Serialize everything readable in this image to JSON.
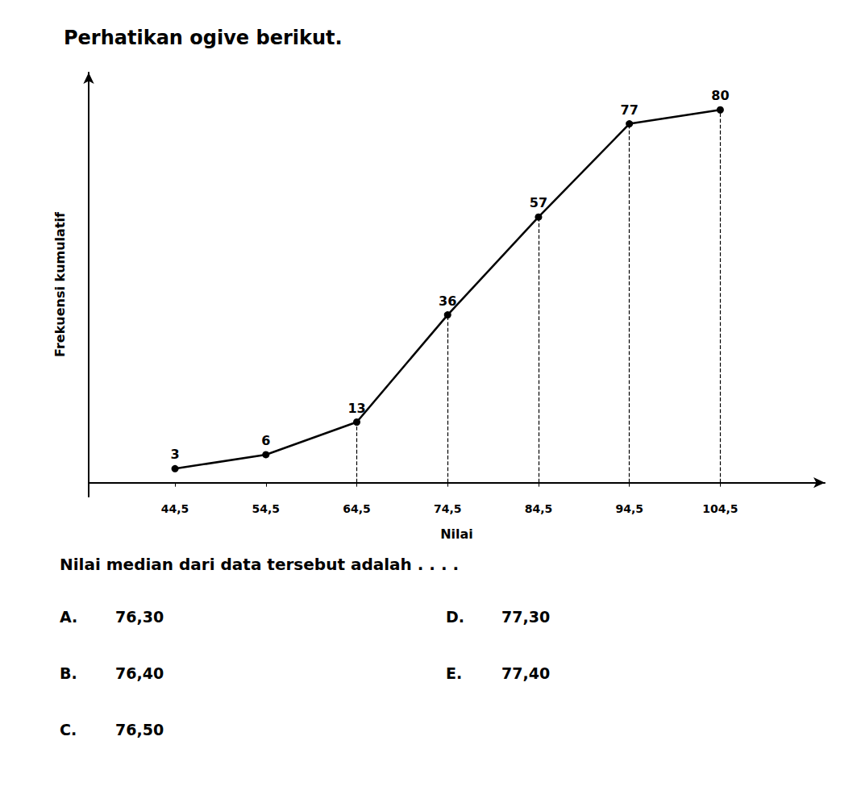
{
  "chart_data": {
    "type": "line",
    "title": "Perhatikan ogive berikut.",
    "x_label": "Nilai",
    "y_label": "Frekuensi kumulatif",
    "x": [
      44.5,
      54.5,
      64.5,
      74.5,
      84.5,
      94.5,
      104.5
    ],
    "values": [
      3,
      6,
      13,
      36,
      57,
      77,
      80
    ],
    "color": "#000000",
    "marker": "circle",
    "data_labels": true,
    "xlim": [
      35,
      116
    ],
    "ylim": [
      -3,
      88
    ],
    "xticks": [
      {
        "value": 44.5,
        "label": "44,5"
      },
      {
        "value": 54.5,
        "label": "54,5"
      },
      {
        "value": 64.5,
        "label": "64,5"
      },
      {
        "value": 74.5,
        "label": "74,5"
      },
      {
        "value": 84.5,
        "label": "84,5"
      },
      {
        "value": 94.5,
        "label": "94,5"
      },
      {
        "value": 104.5,
        "label": "104,5"
      }
    ],
    "tick_labels": "x",
    "grid": false,
    "drop_lines": {
      "x": [
        64.5,
        74.5,
        84.5,
        94.5,
        104.5
      ],
      "y": [
        13,
        36,
        57,
        77,
        80
      ],
      "line_style": "dashed"
    },
    "question": "Nilai median dari data tersebut adalah . . . .",
    "options": [
      {
        "letter": "A.",
        "text": "76,30"
      },
      {
        "letter": "B.",
        "text": "76,40"
      },
      {
        "letter": "C.",
        "text": "76,50"
      },
      {
        "letter": "D.",
        "text": "77,30"
      },
      {
        "letter": "E.",
        "text": "77,40"
      }
    ]
  }
}
